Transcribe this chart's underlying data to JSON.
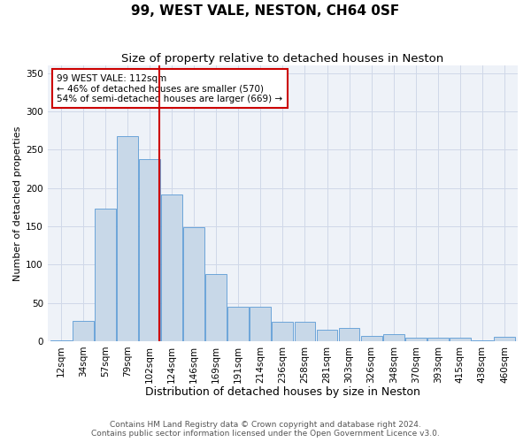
{
  "title": "99, WEST VALE, NESTON, CH64 0SF",
  "subtitle": "Size of property relative to detached houses in Neston",
  "xlabel": "Distribution of detached houses by size in Neston",
  "ylabel": "Number of detached properties",
  "categories": [
    "12sqm",
    "34sqm",
    "57sqm",
    "79sqm",
    "102sqm",
    "124sqm",
    "146sqm",
    "169sqm",
    "191sqm",
    "214sqm",
    "236sqm",
    "258sqm",
    "281sqm",
    "303sqm",
    "326sqm",
    "348sqm",
    "370sqm",
    "393sqm",
    "415sqm",
    "438sqm",
    "460sqm"
  ],
  "bar_values": [
    1,
    26,
    173,
    268,
    238,
    192,
    149,
    88,
    45,
    45,
    25,
    25,
    15,
    17,
    7,
    9,
    4,
    5,
    4,
    1,
    6
  ],
  "bar_color": "#c8d8e8",
  "bar_edge_color": "#5b9bd5",
  "annotation_text": "99 WEST VALE: 112sqm\n← 46% of detached houses are smaller (570)\n54% of semi-detached houses are larger (669) →",
  "annotation_box_color": "#ffffff",
  "annotation_box_edge": "#cc0000",
  "vline_color": "#cc0000",
  "grid_color": "#d0d8e8",
  "background_color": "#eef2f8",
  "footer": "Contains HM Land Registry data © Crown copyright and database right 2024.\nContains public sector information licensed under the Open Government Licence v3.0.",
  "ylim": [
    0,
    360
  ],
  "title_fontsize": 11,
  "subtitle_fontsize": 9.5,
  "xlabel_fontsize": 9,
  "ylabel_fontsize": 8,
  "tick_fontsize": 7.5,
  "footer_fontsize": 6.5
}
